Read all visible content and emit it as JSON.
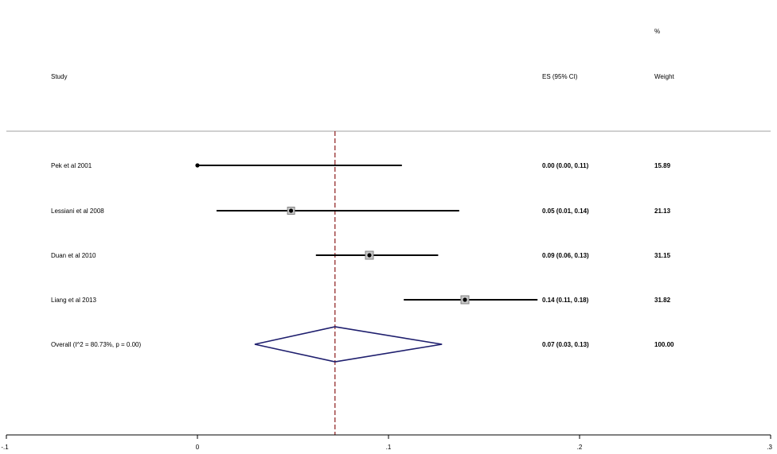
{
  "chart_data": {
    "type": "forest",
    "title": "",
    "xlabel": "",
    "ylabel": "",
    "xlim": [
      -0.1,
      0.3
    ],
    "xticks": [
      -0.1,
      0,
      0.1,
      0.2,
      0.3
    ],
    "xtick_labels": [
      "-.1",
      "0",
      ".1",
      ".2",
      ".3"
    ],
    "reference_line": 0.072,
    "grid": false,
    "headers": {
      "study": "Study",
      "es": "ES (95% CI)",
      "weight_line1": "%",
      "weight_line2": "Weight"
    },
    "studies": [
      {
        "name": "Pek et al 2001",
        "es": 0.0,
        "lo": 0.0,
        "hi": 0.107,
        "es_text": "0.00 (0.00, 0.11)",
        "weight": "15.89"
      },
      {
        "name": "Lessiani et al 2008",
        "es": 0.049,
        "lo": 0.01,
        "hi": 0.137,
        "es_text": "0.05 (0.01, 0.14)",
        "weight": "21.13"
      },
      {
        "name": "Duan et al 2010",
        "es": 0.09,
        "lo": 0.062,
        "hi": 0.126,
        "es_text": "0.09 (0.06, 0.13)",
        "weight": "31.15"
      },
      {
        "name": "Liang et al 2013",
        "es": 0.14,
        "lo": 0.108,
        "hi": 0.178,
        "es_text": "0.14 (0.11, 0.18)",
        "weight": "31.82"
      }
    ],
    "overall": {
      "name": "Overall  (I^2 = 80.73%, p = 0.00)",
      "es": 0.072,
      "lo": 0.03,
      "hi": 0.128,
      "es_text": "0.07 (0.03, 0.13)",
      "weight": "100.00"
    },
    "colors": {
      "ci_line": "#000000",
      "marker": "#000000",
      "box_fill": "#c8c8c8",
      "box_edge": "#808080",
      "diamond": "#1f1f6e",
      "ref_line": "#8b1a1a",
      "axis": "#000000",
      "separator": "#a0a0a0"
    }
  }
}
